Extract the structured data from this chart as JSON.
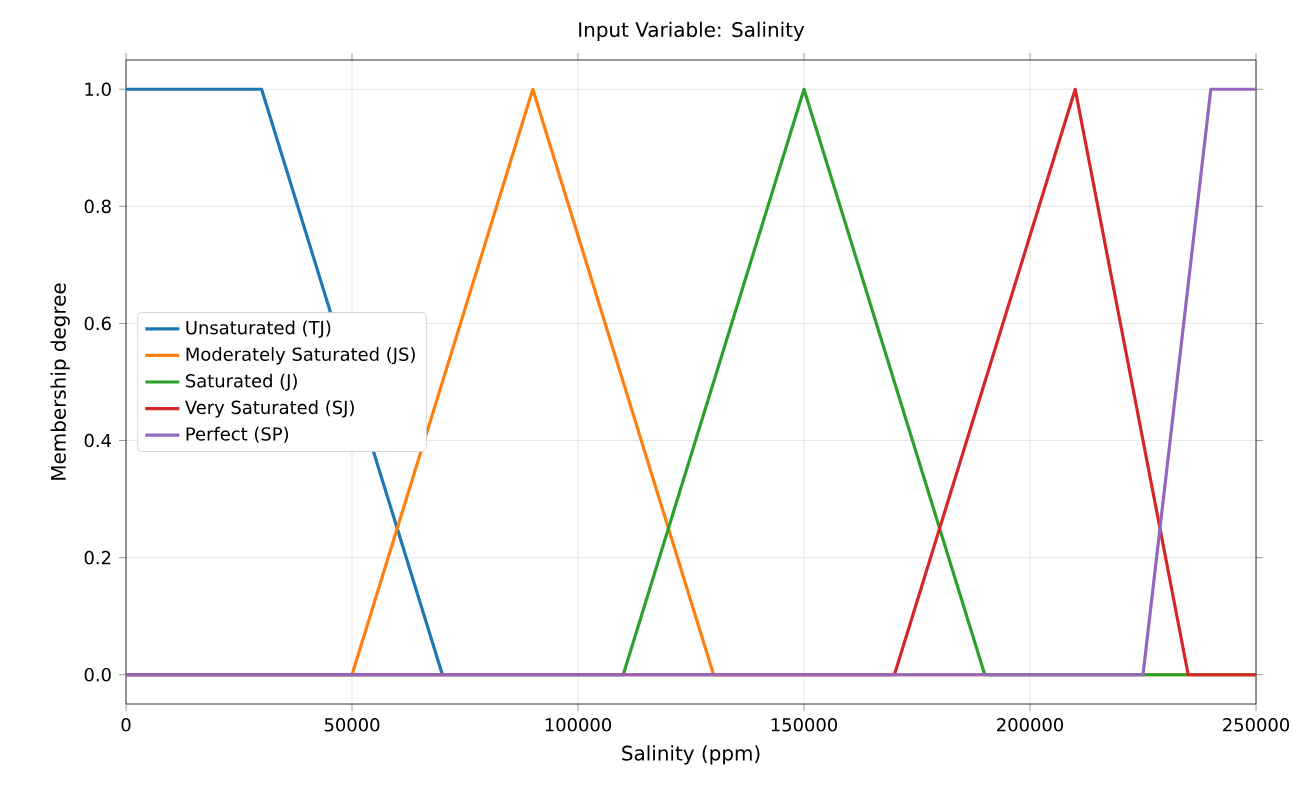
{
  "chart_data": {
    "type": "line",
    "title": "Input Variable: Salinity",
    "xlabel": "Salinity (ppm)",
    "ylabel": "Membership degree",
    "xlim": [
      0,
      250000
    ],
    "ylim": [
      -0.05,
      1.05
    ],
    "xticks": [
      0,
      50000,
      100000,
      150000,
      200000,
      250000
    ],
    "yticks": [
      {
        "value": 0,
        "label": "0.0"
      },
      {
        "value": 0.2,
        "label": "0.2"
      },
      {
        "value": 0.4,
        "label": "0.4"
      },
      {
        "value": 0.6,
        "label": "0.6"
      },
      {
        "value": 0.8,
        "label": "0.8"
      },
      {
        "value": 1,
        "label": "1.0"
      }
    ],
    "grid": true,
    "legend": "center left",
    "series": [
      {
        "name": "Unsaturated (TJ)",
        "color": "#1f77b4",
        "x": [
          0,
          30000,
          70000
        ],
        "values": [
          1,
          1,
          0
        ]
      },
      {
        "name": "Moderately Saturated (JS)",
        "color": "#ff7f0e",
        "x": [
          0,
          50000,
          90000,
          130000,
          250000
        ],
        "values": [
          0,
          0,
          1,
          0,
          0
        ]
      },
      {
        "name": "Saturated (J)",
        "color": "#2ca02c",
        "x": [
          0,
          110000,
          150000,
          190000,
          250000
        ],
        "values": [
          0,
          0,
          1,
          0,
          0
        ]
      },
      {
        "name": "Very Saturated (SJ)",
        "color": "#d62728",
        "x": [
          0,
          170000,
          210000,
          235000,
          250000
        ],
        "values": [
          0,
          0,
          1,
          0,
          0
        ]
      },
      {
        "name": "Perfect (SP)",
        "color": "#9467bd",
        "x": [
          0,
          225000,
          240000,
          250000
        ],
        "values": [
          0,
          0,
          1,
          1
        ]
      }
    ]
  }
}
